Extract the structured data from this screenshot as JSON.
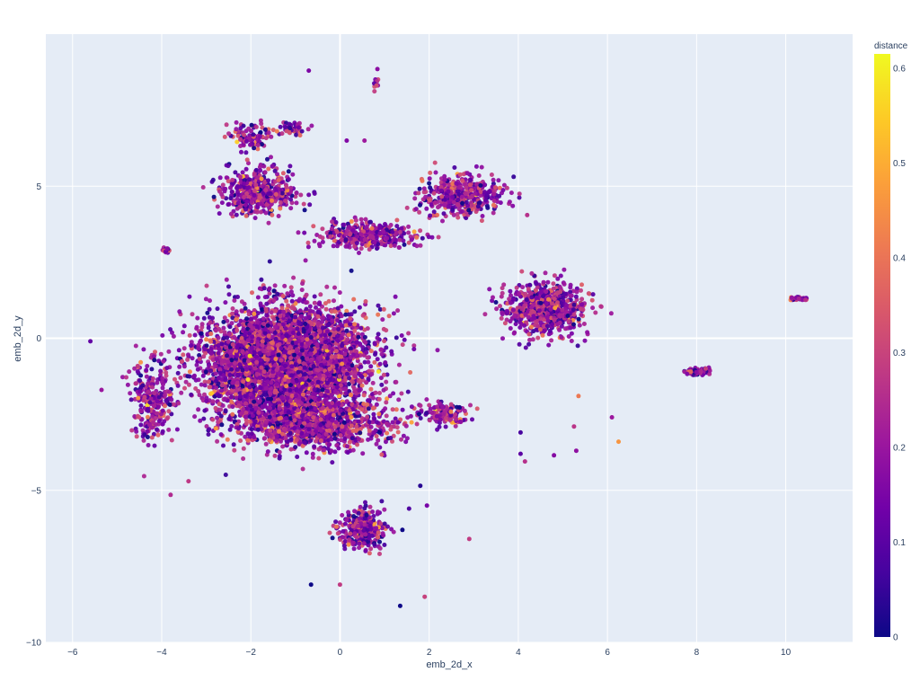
{
  "chart_data": {
    "type": "scatter",
    "title": "",
    "xlabel": "emb_2d_x",
    "ylabel": "emb_2d_y",
    "xlim": [
      -6.6,
      11.5
    ],
    "ylim": [
      -10,
      10
    ],
    "x_ticks": [
      -6,
      -4,
      -2,
      0,
      2,
      4,
      6,
      8,
      10
    ],
    "y_ticks": [
      -10,
      -5,
      0,
      5
    ],
    "x_tick_labels": [
      "−6",
      "−4",
      "−2",
      "0",
      "2",
      "4",
      "6",
      "8",
      "10"
    ],
    "y_tick_labels": [
      "−10",
      "−5",
      "0",
      "5"
    ],
    "grid": true,
    "plot_background": "#e5ecf6",
    "colorbar": {
      "title": "distance",
      "range": [
        0,
        0.615
      ],
      "ticks": [
        0,
        0.1,
        0.2,
        0.3,
        0.4,
        0.5,
        0.6
      ],
      "tick_labels": [
        "0",
        "0.1",
        "0.2",
        "0.3",
        "0.4",
        "0.5",
        "0.6"
      ],
      "colorscale": [
        "#0d0887",
        "#46039f",
        "#7201a8",
        "#9c179e",
        "#bd3786",
        "#d8576b",
        "#ed7953",
        "#fb9f3a",
        "#fdca26",
        "#f0f921"
      ]
    },
    "clusters": [
      {
        "cx": -1.2,
        "cy": -0.8,
        "sx": 1.6,
        "sy": 1.6,
        "weight": 0.55
      },
      {
        "cx": -0.6,
        "cy": -2.8,
        "sx": 1.6,
        "sy": 0.8,
        "weight": 0.12
      },
      {
        "cx": 4.6,
        "cy": 1.0,
        "sx": 0.8,
        "sy": 0.8,
        "weight": 0.08
      },
      {
        "cx": 2.7,
        "cy": 4.7,
        "sx": 0.8,
        "sy": 0.6,
        "weight": 0.05
      },
      {
        "cx": -1.8,
        "cy": 4.8,
        "sx": 0.8,
        "sy": 0.7,
        "weight": 0.05
      },
      {
        "cx": -2.0,
        "cy": 6.6,
        "sx": 0.4,
        "sy": 0.4,
        "weight": 0.01
      },
      {
        "cx": -1.1,
        "cy": 6.9,
        "sx": 0.3,
        "sy": 0.2,
        "weight": 0.006
      },
      {
        "cx": 0.6,
        "cy": 3.4,
        "sx": 1.0,
        "sy": 0.4,
        "weight": 0.04
      },
      {
        "cx": 0.5,
        "cy": -6.3,
        "sx": 0.45,
        "sy": 0.6,
        "weight": 0.035
      },
      {
        "cx": -4.2,
        "cy": -2.0,
        "sx": 0.4,
        "sy": 1.2,
        "weight": 0.03
      },
      {
        "cx": 8.0,
        "cy": -1.1,
        "sx": 0.22,
        "sy": 0.1,
        "weight": 0.008
      },
      {
        "cx": 10.3,
        "cy": 1.3,
        "sx": 0.18,
        "sy": 0.05,
        "weight": 0.004
      },
      {
        "cx": 2.4,
        "cy": -2.5,
        "sx": 0.6,
        "sy": 0.3,
        "weight": 0.015
      },
      {
        "cx": -3.9,
        "cy": 2.9,
        "sx": 0.08,
        "sy": 0.08,
        "weight": 0.002
      },
      {
        "cx": 0.8,
        "cy": 8.3,
        "sx": 0.05,
        "sy": 0.2,
        "weight": 0.001
      }
    ],
    "outliers": [
      [
        -0.7,
        8.8
      ],
      [
        0.84,
        8.85
      ],
      [
        0.15,
        6.5
      ],
      [
        0.55,
        6.5
      ],
      [
        -5.6,
        -0.1
      ],
      [
        -5.35,
        -1.7
      ],
      [
        -3.8,
        -5.15
      ],
      [
        -3.4,
        -4.7
      ],
      [
        1.8,
        -4.85
      ],
      [
        1.55,
        -5.6
      ],
      [
        1.95,
        -5.5
      ],
      [
        1.4,
        -6.3
      ],
      [
        0.0,
        -8.1
      ],
      [
        1.35,
        -8.8
      ],
      [
        1.9,
        -8.5
      ],
      [
        2.9,
        -6.6
      ],
      [
        4.05,
        -3.8
      ],
      [
        4.15,
        -4.05
      ],
      [
        4.05,
        -3.1
      ],
      [
        4.8,
        -3.85
      ],
      [
        5.3,
        -3.7
      ],
      [
        6.25,
        -3.4
      ],
      [
        6.1,
        -2.6
      ],
      [
        5.35,
        -1.9
      ],
      [
        5.25,
        -2.9
      ],
      [
        4.2,
        4.05
      ],
      [
        -0.65,
        -8.1
      ]
    ]
  }
}
